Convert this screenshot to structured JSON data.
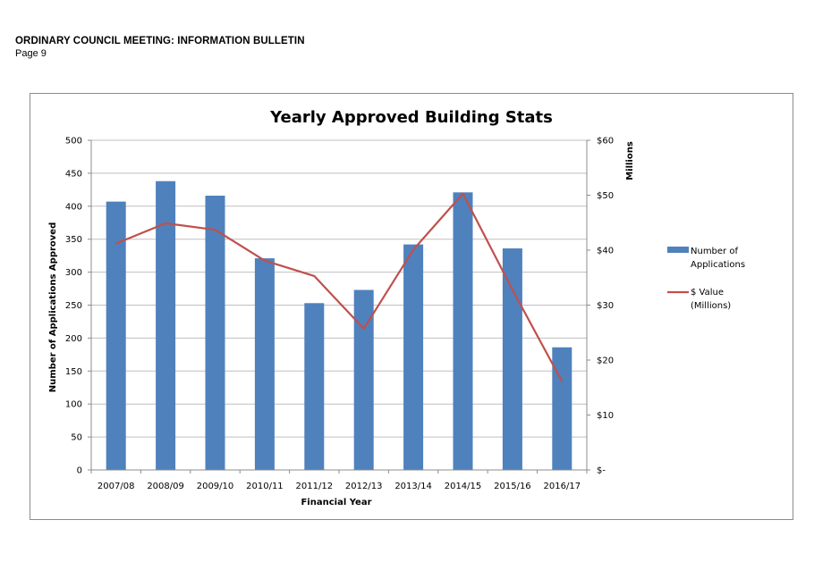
{
  "header": {
    "title": "ORDINARY COUNCIL MEETING: INFORMATION BULLETIN",
    "page": "Page 9"
  },
  "colors": {
    "bar": "#4f81bd",
    "line": "#c0504d",
    "grid": "#bfbfbf",
    "axis": "#8c8c8c"
  },
  "chart_data": {
    "type": "bar",
    "title": "Yearly Approved Building Stats",
    "xlabel": "Financial  Year",
    "ylabel": "Number of Applications Approved",
    "y2label": "Millions",
    "categories": [
      "2007/08",
      "2008/09",
      "2009/10",
      "2010/11",
      "2011/12",
      "2012/13",
      "2013/14",
      "2014/15",
      "2015/16",
      "2016/17"
    ],
    "ylim": [
      0,
      500
    ],
    "yticks": [
      0,
      50,
      100,
      150,
      200,
      250,
      300,
      350,
      400,
      450,
      500
    ],
    "y2lim": [
      0,
      60
    ],
    "y2ticks": [
      0,
      10,
      20,
      30,
      40,
      50,
      60
    ],
    "y2ticklabels": [
      "$-",
      "$10",
      "$20",
      "$30",
      "$40",
      "$50",
      "$60"
    ],
    "grid": true,
    "legend_position": "right",
    "series": [
      {
        "name": "Number of Applications",
        "type": "bar",
        "axis": "left",
        "values": [
          407,
          438,
          416,
          321,
          253,
          273,
          342,
          421,
          336,
          186
        ]
      },
      {
        "name": "$ Value (Millions)",
        "type": "line",
        "axis": "right",
        "values": [
          41.2,
          44.9,
          43.7,
          38.1,
          35.3,
          25.7,
          40.1,
          50.3,
          32.8,
          16.1
        ]
      }
    ],
    "legend": [
      {
        "line1": "Number of",
        "line2": "Applications"
      },
      {
        "line1": "$ Value",
        "line2": "(Millions)"
      }
    ]
  }
}
